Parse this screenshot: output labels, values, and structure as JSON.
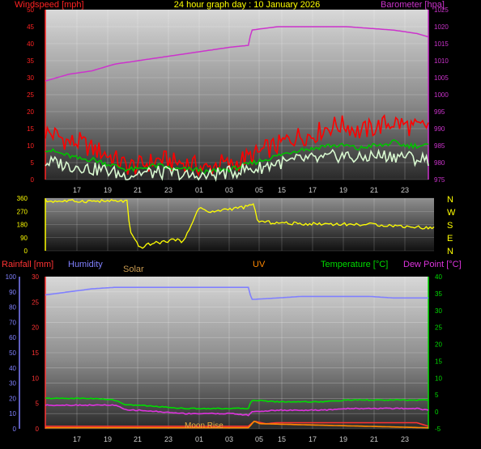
{
  "chart_data": [
    {
      "type": "line",
      "title": "24 hour graph day : 10 January 2026",
      "y_left_label": "Windspeed [mph]",
      "y_right_label": "Barometer [hpa]",
      "y_left_ticks": [
        "0",
        "5",
        "10",
        "15",
        "20",
        "25",
        "30",
        "35",
        "40",
        "45",
        "50"
      ],
      "y_right_ticks": [
        "975",
        "980",
        "985",
        "990",
        "995",
        "1000",
        "1005",
        "1010",
        "1015",
        "1020",
        "1025"
      ],
      "x_ticks": [
        "17",
        "19",
        "21",
        "23",
        "01",
        "03",
        "05",
        "15",
        "17",
        "19",
        "21",
        "23"
      ],
      "ylim_left": [
        0,
        50
      ],
      "ylim_right": [
        975,
        1025
      ],
      "colors": {
        "gust": "#ff0000",
        "average": "#00c000",
        "wind": "#d8f8d0",
        "barometer": "#cc33cc",
        "title": "#ffff00"
      },
      "series": [
        {
          "axis": "left",
          "color_key": "gust",
          "points": [
            [
              0,
              14
            ],
            [
              2,
              13
            ],
            [
              4,
              11
            ],
            [
              6,
              11
            ],
            [
              8,
              9
            ],
            [
              10,
              8
            ],
            [
              12,
              6
            ],
            [
              14,
              4
            ],
            [
              16,
              4
            ],
            [
              18,
              5
            ],
            [
              20,
              6
            ],
            [
              22,
              5
            ],
            [
              24,
              5
            ],
            [
              26,
              4
            ],
            [
              28,
              3
            ],
            [
              30,
              5
            ],
            [
              32,
              4
            ],
            [
              34,
              6
            ],
            [
              36,
              7
            ],
            [
              38,
              9
            ],
            [
              40,
              10
            ],
            [
              42,
              12
            ],
            [
              44,
              13
            ],
            [
              46,
              13
            ],
            [
              48,
              15
            ],
            [
              50,
              16
            ],
            [
              52,
              16
            ],
            [
              54,
              14
            ],
            [
              56,
              15
            ],
            [
              58,
              16
            ],
            [
              60,
              17
            ],
            [
              62,
              16
            ],
            [
              64,
              15
            ],
            [
              66,
              16
            ]
          ]
        },
        {
          "axis": "left",
          "color_key": "average",
          "points": [
            [
              0,
              9
            ],
            [
              2,
              8
            ],
            [
              4,
              7
            ],
            [
              6,
              6
            ],
            [
              8,
              6
            ],
            [
              10,
              5
            ],
            [
              12,
              4
            ],
            [
              14,
              3
            ],
            [
              16,
              3
            ],
            [
              18,
              4
            ],
            [
              20,
              4
            ],
            [
              22,
              3
            ],
            [
              24,
              3
            ],
            [
              26,
              3
            ],
            [
              28,
              2
            ],
            [
              30,
              3
            ],
            [
              32,
              3
            ],
            [
              34,
              4
            ],
            [
              36,
              5
            ],
            [
              38,
              6
            ],
            [
              40,
              7
            ],
            [
              42,
              8
            ],
            [
              44,
              9
            ],
            [
              46,
              9
            ],
            [
              48,
              10
            ],
            [
              50,
              10
            ],
            [
              52,
              10
            ],
            [
              54,
              9
            ],
            [
              56,
              10
            ],
            [
              58,
              10
            ],
            [
              60,
              11
            ],
            [
              62,
              10
            ],
            [
              64,
              10
            ],
            [
              66,
              10
            ]
          ]
        },
        {
          "axis": "left",
          "color_key": "wind",
          "points": [
            [
              0,
              5
            ],
            [
              2,
              5
            ],
            [
              4,
              4
            ],
            [
              6,
              4
            ],
            [
              8,
              3
            ],
            [
              10,
              3
            ],
            [
              12,
              2
            ],
            [
              14,
              1
            ],
            [
              16,
              2
            ],
            [
              18,
              2
            ],
            [
              20,
              2
            ],
            [
              22,
              2
            ],
            [
              24,
              1
            ],
            [
              26,
              1
            ],
            [
              28,
              1
            ],
            [
              30,
              2
            ],
            [
              32,
              2
            ],
            [
              34,
              3
            ],
            [
              36,
              3
            ],
            [
              38,
              4
            ],
            [
              40,
              5
            ],
            [
              42,
              5
            ],
            [
              44,
              6
            ],
            [
              46,
              6
            ],
            [
              48,
              6
            ],
            [
              50,
              7
            ],
            [
              52,
              7
            ],
            [
              54,
              6
            ],
            [
              56,
              7
            ],
            [
              58,
              7
            ],
            [
              60,
              7
            ],
            [
              62,
              7
            ],
            [
              64,
              6
            ],
            [
              66,
              6
            ]
          ]
        },
        {
          "axis": "right",
          "color_key": "barometer",
          "points": [
            [
              0,
              1004
            ],
            [
              4,
              1006
            ],
            [
              8,
              1007
            ],
            [
              12,
              1009
            ],
            [
              16,
              1010
            ],
            [
              20,
              1011
            ],
            [
              24,
              1012
            ],
            [
              28,
              1013
            ],
            [
              32,
              1014
            ],
            [
              35,
              1014.5
            ],
            [
              35.5,
              1019
            ],
            [
              40,
              1020
            ],
            [
              44,
              1020
            ],
            [
              48,
              1020
            ],
            [
              52,
              1020
            ],
            [
              56,
              1019.5
            ],
            [
              60,
              1019
            ],
            [
              64,
              1018
            ],
            [
              66,
              1017
            ]
          ]
        }
      ]
    },
    {
      "type": "line",
      "y_left_ticks": [
        "360",
        "270",
        "180",
        "90",
        "0"
      ],
      "y_right_ticks": [
        "N",
        "W",
        "S",
        "E",
        "N"
      ],
      "ylim": [
        0,
        360
      ],
      "colors": {
        "direction": "#ffff00",
        "ticks": "#ffff00"
      },
      "series": [
        {
          "color_key": "direction",
          "points": [
            [
              0,
              340
            ],
            [
              4,
              340
            ],
            [
              8,
              340
            ],
            [
              12,
              340
            ],
            [
              14,
              340
            ],
            [
              14.3,
              130
            ],
            [
              16,
              20
            ],
            [
              18,
              50
            ],
            [
              20,
              60
            ],
            [
              22,
              80
            ],
            [
              23,
              60
            ],
            [
              24,
              110
            ],
            [
              24.5,
              140
            ],
            [
              26,
              300
            ],
            [
              28,
              260
            ],
            [
              30,
              280
            ],
            [
              32,
              290
            ],
            [
              34,
              300
            ],
            [
              35,
              310
            ],
            [
              35.5,
              320
            ],
            [
              36,
              200
            ],
            [
              40,
              190
            ],
            [
              44,
              185
            ],
            [
              48,
              185
            ],
            [
              52,
              180
            ],
            [
              56,
              180
            ],
            [
              60,
              170
            ],
            [
              64,
              160
            ],
            [
              66,
              155
            ]
          ]
        }
      ]
    },
    {
      "type": "line",
      "labels": {
        "rainfall": "Rainfall [mm]",
        "humidity": "Humidity",
        "solar": "Solar",
        "uv": "UV",
        "temperature": "Temperature [°C]",
        "dewpoint": "Dew Point [°C]"
      },
      "annotation": "Moon Rise",
      "y_humidity_ticks": [
        "0",
        "10",
        "20",
        "30",
        "40",
        "50",
        "60",
        "70",
        "80",
        "90",
        "100"
      ],
      "y_rain_ticks": [
        "0",
        "5",
        "10",
        "15",
        "20",
        "25",
        "30"
      ],
      "y_temp_ticks": [
        "-5",
        "0",
        "5",
        "10",
        "15",
        "20",
        "25",
        "30",
        "35",
        "40"
      ],
      "x_ticks": [
        "17",
        "19",
        "21",
        "23",
        "01",
        "03",
        "05",
        "15",
        "17",
        "19",
        "21",
        "23"
      ],
      "ylim_humidity": [
        0,
        100
      ],
      "ylim_rain": [
        0,
        30
      ],
      "ylim_temp": [
        -5,
        40
      ],
      "colors": {
        "rainfall": "#ff3333",
        "humidity": "#8080ff",
        "solar": "#c89a50",
        "uv": "#ff8800",
        "temperature": "#00dd00",
        "dewpoint": "#dd33dd",
        "annotation": "#e8b040"
      },
      "series": [
        {
          "axis": "humidity",
          "color_key": "humidity",
          "points": [
            [
              0,
              88
            ],
            [
              4,
              90
            ],
            [
              8,
              92
            ],
            [
              12,
              93
            ],
            [
              16,
              93
            ],
            [
              20,
              93
            ],
            [
              24,
              93
            ],
            [
              28,
              93
            ],
            [
              32,
              93
            ],
            [
              35,
              93
            ],
            [
              35.5,
              85
            ],
            [
              40,
              86
            ],
            [
              44,
              87
            ],
            [
              48,
              87
            ],
            [
              52,
              87
            ],
            [
              56,
              87
            ],
            [
              60,
              86
            ],
            [
              64,
              86
            ],
            [
              66,
              86
            ]
          ]
        },
        {
          "axis": "temp",
          "color_key": "temperature",
          "points": [
            [
              0,
              4
            ],
            [
              4,
              4
            ],
            [
              8,
              4
            ],
            [
              12,
              3.5
            ],
            [
              14,
              2
            ],
            [
              16,
              2
            ],
            [
              20,
              1.5
            ],
            [
              24,
              1
            ],
            [
              28,
              1
            ],
            [
              32,
              1
            ],
            [
              35,
              1
            ],
            [
              35.5,
              3.5
            ],
            [
              40,
              3
            ],
            [
              44,
              3
            ],
            [
              48,
              3
            ],
            [
              52,
              3.5
            ],
            [
              56,
              3.5
            ],
            [
              60,
              3.5
            ],
            [
              64,
              3.5
            ],
            [
              66,
              3.5
            ]
          ]
        },
        {
          "axis": "temp",
          "color_key": "dewpoint",
          "points": [
            [
              0,
              2
            ],
            [
              4,
              2
            ],
            [
              8,
              2
            ],
            [
              12,
              2
            ],
            [
              14,
              0.5
            ],
            [
              16,
              0.5
            ],
            [
              20,
              0
            ],
            [
              24,
              -0.5
            ],
            [
              28,
              -0.5
            ],
            [
              32,
              -0.5
            ],
            [
              35,
              -1
            ],
            [
              35.5,
              0
            ],
            [
              40,
              0.5
            ],
            [
              44,
              0.5
            ],
            [
              48,
              0.5
            ],
            [
              52,
              1
            ],
            [
              56,
              1
            ],
            [
              60,
              1
            ],
            [
              64,
              1
            ],
            [
              66,
              0.5
            ]
          ]
        },
        {
          "axis": "rain",
          "color_key": "rainfall",
          "points": [
            [
              0,
              0.5
            ],
            [
              4,
              0.5
            ],
            [
              8,
              0.5
            ],
            [
              12,
              0.5
            ],
            [
              16,
              0.5
            ],
            [
              20,
              0.5
            ],
            [
              24,
              0.5
            ],
            [
              28,
              0.5
            ],
            [
              32,
              0.5
            ],
            [
              35,
              0.5
            ],
            [
              36,
              1.5
            ],
            [
              38,
              1
            ],
            [
              40,
              1.2
            ],
            [
              44,
              1.2
            ],
            [
              48,
              1.2
            ],
            [
              52,
              1.2
            ],
            [
              56,
              1.2
            ],
            [
              60,
              1.2
            ],
            [
              64,
              1.2
            ],
            [
              66,
              0.5
            ]
          ]
        },
        {
          "axis": "rain",
          "color_key": "uv",
          "points": [
            [
              0,
              0.2
            ],
            [
              20,
              0.2
            ],
            [
              35,
              0.2
            ],
            [
              36,
              1.5
            ],
            [
              37,
              1
            ],
            [
              66,
              0.2
            ]
          ]
        }
      ]
    }
  ]
}
